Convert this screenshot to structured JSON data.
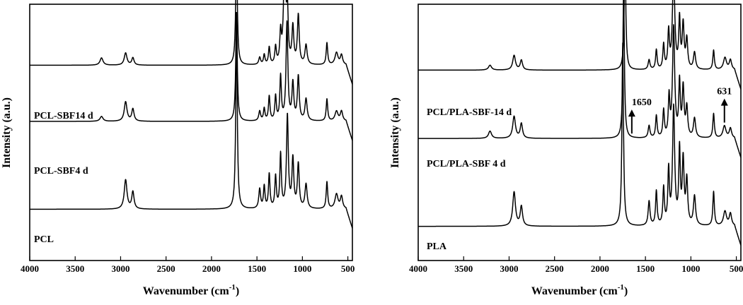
{
  "chart_data": [
    {
      "type": "line",
      "xlabel": "Wavenumber (cm",
      "xlabel_sup": "-1",
      "xlabel_close": ")",
      "ylabel": "Intensity (a.u.)",
      "xlim": [
        4000,
        450
      ],
      "xticks": [
        4000,
        3500,
        3000,
        2500,
        2000,
        1500,
        1000,
        500
      ],
      "y_ticks_shown": false,
      "grid": false,
      "line_color": "#000000",
      "series": [
        {
          "name": "PCL-SBF14 d",
          "baseline": 0.8,
          "peaks": [
            [
              3210,
              0.03,
              20
            ],
            [
              2945,
              0.05,
              18
            ],
            [
              2865,
              0.03,
              15
            ],
            [
              1725,
              0.5,
              10
            ],
            [
              1470,
              0.03,
              12
            ],
            [
              1420,
              0.04,
              10
            ],
            [
              1365,
              0.07,
              10
            ],
            [
              1295,
              0.07,
              10
            ],
            [
              1240,
              0.12,
              10
            ],
            [
              1195,
              0.45,
              14
            ],
            [
              1165,
              0.2,
              10
            ],
            [
              1105,
              0.15,
              12
            ],
            [
              1045,
              0.2,
              12
            ],
            [
              960,
              0.08,
              14
            ],
            [
              730,
              0.09,
              10
            ],
            [
              625,
              0.05,
              20
            ],
            [
              570,
              0.04,
              15
            ]
          ]
        },
        {
          "name": "PCL-SBF4 d",
          "baseline": 0.57,
          "peaks": [
            [
              3210,
              0.02,
              20
            ],
            [
              2945,
              0.08,
              18
            ],
            [
              2865,
              0.05,
              15
            ],
            [
              1725,
              0.45,
              10
            ],
            [
              1470,
              0.04,
              12
            ],
            [
              1420,
              0.05,
              10
            ],
            [
              1365,
              0.1,
              10
            ],
            [
              1295,
              0.1,
              10
            ],
            [
              1240,
              0.18,
              10
            ],
            [
              1170,
              0.4,
              12
            ],
            [
              1105,
              0.15,
              12
            ],
            [
              1045,
              0.18,
              12
            ],
            [
              960,
              0.09,
              14
            ],
            [
              730,
              0.09,
              10
            ],
            [
              625,
              0.04,
              20
            ],
            [
              570,
              0.04,
              15
            ]
          ]
        },
        {
          "name": "PCL",
          "baseline": 0.21,
          "peaks": [
            [
              2945,
              0.12,
              18
            ],
            [
              2865,
              0.07,
              15
            ],
            [
              1725,
              0.75,
              10
            ],
            [
              1470,
              0.08,
              12
            ],
            [
              1420,
              0.09,
              10
            ],
            [
              1365,
              0.14,
              10
            ],
            [
              1295,
              0.13,
              10
            ],
            [
              1240,
              0.22,
              10
            ],
            [
              1165,
              0.38,
              12
            ],
            [
              1105,
              0.2,
              12
            ],
            [
              1045,
              0.18,
              12
            ],
            [
              960,
              0.1,
              14
            ],
            [
              730,
              0.11,
              10
            ],
            [
              625,
              0.06,
              20
            ],
            [
              570,
              0.05,
              15
            ]
          ]
        }
      ],
      "annotations": []
    },
    {
      "type": "line",
      "xlabel": "Wavenumber (cm",
      "xlabel_sup": "-1",
      "xlabel_close": ")",
      "ylabel": "Intensity (a.u.)",
      "xlim": [
        4000,
        450
      ],
      "xticks": [
        4000,
        3500,
        3000,
        2500,
        2000,
        1500,
        1000,
        500
      ],
      "y_ticks_shown": false,
      "grid": false,
      "line_color": "#000000",
      "series": [
        {
          "name": "PCL/PLA-SBF-14 d",
          "baseline": 0.78,
          "peaks": [
            [
              3210,
              0.02,
              20
            ],
            [
              2945,
              0.06,
              18
            ],
            [
              2865,
              0.04,
              15
            ],
            [
              1725,
              0.5,
              10
            ],
            [
              1460,
              0.04,
              12
            ],
            [
              1380,
              0.08,
              10
            ],
            [
              1300,
              0.1,
              10
            ],
            [
              1245,
              0.15,
              10
            ],
            [
              1190,
              0.42,
              14
            ],
            [
              1125,
              0.2,
              10
            ],
            [
              1085,
              0.18,
              12
            ],
            [
              1045,
              0.12,
              12
            ],
            [
              960,
              0.07,
              14
            ],
            [
              750,
              0.08,
              10
            ],
            [
              625,
              0.05,
              20
            ],
            [
              565,
              0.04,
              15
            ]
          ]
        },
        {
          "name": "PCL/PLA-SBF 4 d",
          "baseline": 0.5,
          "peaks": [
            [
              3210,
              0.03,
              20
            ],
            [
              2945,
              0.09,
              18
            ],
            [
              2865,
              0.06,
              15
            ],
            [
              1740,
              0.6,
              10
            ],
            [
              1460,
              0.05,
              12
            ],
            [
              1380,
              0.09,
              10
            ],
            [
              1300,
              0.11,
              10
            ],
            [
              1240,
              0.16,
              10
            ],
            [
              1190,
              0.45,
              14
            ],
            [
              1125,
              0.22,
              10
            ],
            [
              1085,
              0.2,
              12
            ],
            [
              1045,
              0.12,
              12
            ],
            [
              960,
              0.08,
              14
            ],
            [
              750,
              0.1,
              10
            ],
            [
              631,
              0.05,
              20
            ],
            [
              565,
              0.04,
              15
            ]
          ]
        },
        {
          "name": "PLA",
          "baseline": 0.14,
          "peaks": [
            [
              2945,
              0.14,
              18
            ],
            [
              2865,
              0.08,
              15
            ],
            [
              1750,
              0.75,
              10
            ],
            [
              1460,
              0.1,
              12
            ],
            [
              1380,
              0.14,
              10
            ],
            [
              1300,
              0.15,
              10
            ],
            [
              1245,
              0.22,
              10
            ],
            [
              1190,
              0.48,
              14
            ],
            [
              1125,
              0.3,
              10
            ],
            [
              1085,
              0.26,
              12
            ],
            [
              1045,
              0.18,
              12
            ],
            [
              960,
              0.12,
              14
            ],
            [
              750,
              0.14,
              10
            ],
            [
              625,
              0.06,
              20
            ],
            [
              565,
              0.05,
              15
            ]
          ]
        }
      ],
      "annotations": [
        {
          "label": "1650",
          "x": 1650,
          "series_index": 1
        },
        {
          "label": "631",
          "x": 631,
          "series_index": 1
        }
      ]
    }
  ]
}
